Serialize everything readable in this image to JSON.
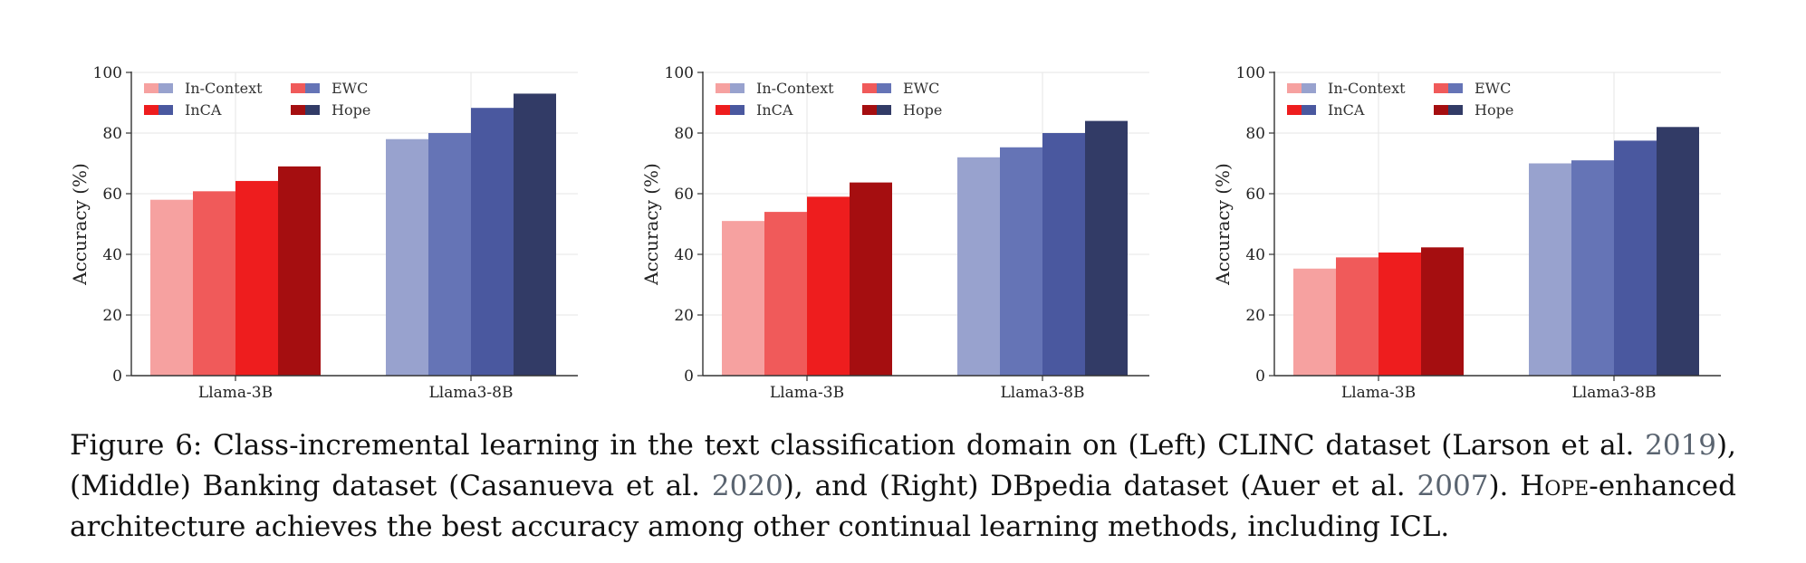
{
  "figure": {
    "caption": {
      "p1": "Figure 6: Class-incremental learning in the text classification domain on (Left) CLINC dataset (Larson et al. ",
      "y1": "2019",
      "p2": "), (Middle) Banking dataset (Casanueva et al. ",
      "y2": "2020",
      "p3": "), and (Right) DBpedia dataset (Auer et al. ",
      "y3": "2007",
      "p4": "). ",
      "method": "Hope",
      "p5": "-enhanced architecture achieves the best accuracy among other continual learning methods, including ICL."
    }
  },
  "colors": {
    "red": [
      "#f6a1a0",
      "#f05a5a",
      "#ee1d1e",
      "#a50e10"
    ],
    "blue": [
      "#98a2ce",
      "#6574b6",
      "#4a589f",
      "#323b66"
    ],
    "axis": "#333333",
    "grid": "#e6e6e6"
  },
  "chart_data": [
    {
      "type": "bar",
      "categories": [
        "Llama-3B",
        "Llama3-8B"
      ],
      "series": [
        {
          "name": "In-Context",
          "values": [
            58,
            78
          ]
        },
        {
          "name": "EWC",
          "values": [
            60.8,
            80
          ]
        },
        {
          "name": "InCA",
          "values": [
            64.2,
            88.3
          ]
        },
        {
          "name": "Hope",
          "values": [
            69,
            93
          ]
        }
      ],
      "ylabel": "Accuracy (%)",
      "ylim": [
        0,
        100
      ],
      "yticks": [
        "0",
        "20",
        "40",
        "60",
        "80",
        "100"
      ],
      "grid": true,
      "legend": "top-left"
    },
    {
      "type": "bar",
      "categories": [
        "Llama-3B",
        "Llama3-8B"
      ],
      "series": [
        {
          "name": "In-Context",
          "values": [
            51,
            72
          ]
        },
        {
          "name": "EWC",
          "values": [
            54,
            75.3
          ]
        },
        {
          "name": "InCA",
          "values": [
            59,
            80
          ]
        },
        {
          "name": "Hope",
          "values": [
            63.7,
            84
          ]
        }
      ],
      "ylabel": "Accuracy (%)",
      "ylim": [
        0,
        100
      ],
      "yticks": [
        "0",
        "20",
        "40",
        "60",
        "80",
        "100"
      ],
      "grid": true,
      "legend": "top-left"
    },
    {
      "type": "bar",
      "categories": [
        "Llama-3B",
        "Llama3-8B"
      ],
      "series": [
        {
          "name": "In-Context",
          "values": [
            35.3,
            70
          ]
        },
        {
          "name": "EWC",
          "values": [
            39,
            71
          ]
        },
        {
          "name": "InCA",
          "values": [
            40.6,
            77.5
          ]
        },
        {
          "name": "Hope",
          "values": [
            42.3,
            82
          ]
        }
      ],
      "ylabel": "Accuracy (%)",
      "ylim": [
        0,
        100
      ],
      "yticks": [
        "0",
        "20",
        "40",
        "60",
        "80",
        "100"
      ],
      "grid": true,
      "legend": "top-left"
    }
  ]
}
